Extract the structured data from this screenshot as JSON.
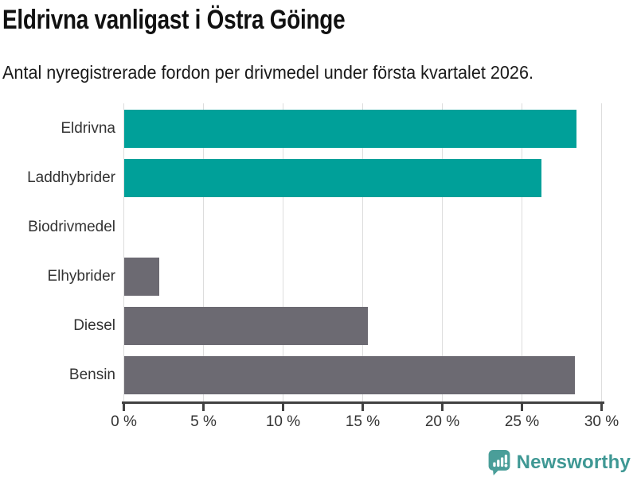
{
  "header": {
    "title": "Eldrivna vanligast i Östra Göinge",
    "subtitle": "Antal nyregistrerade fordon per drivmedel under första kvartalet 2026."
  },
  "chart_data": {
    "type": "bar",
    "orientation": "horizontal",
    "title": "Eldrivna vanligast i Östra Göinge",
    "subtitle": "Antal nyregistrerade fordon per drivmedel under första kvartalet 2026.",
    "categories": [
      "Eldrivna",
      "Laddhybrider",
      "Biodrivmedel",
      "Elhybrider",
      "Diesel",
      "Bensin"
    ],
    "values": [
      28.4,
      26.2,
      0,
      2.2,
      15.3,
      28.3
    ],
    "unit": "%",
    "bar_colors": [
      "#00a099",
      "#00a099",
      "#6c6a72",
      "#6c6a72",
      "#6c6a72",
      "#6c6a72"
    ],
    "highlight_color": "#00a099",
    "default_color": "#6c6a72",
    "xlim": [
      0,
      30
    ],
    "x_ticks": [
      0,
      5,
      10,
      15,
      20,
      25,
      30
    ],
    "x_tick_labels": [
      "0 %",
      "5 %",
      "10 %",
      "15 %",
      "20 %",
      "25 %",
      "30 %"
    ],
    "grid": true,
    "gridline_color": "#dddddd",
    "axis_color": "#414141",
    "legend_position": "none"
  },
  "footer": {
    "brand": "Newsworthy",
    "brand_color": "#3f9894",
    "logo_color": "#4a9e99"
  }
}
